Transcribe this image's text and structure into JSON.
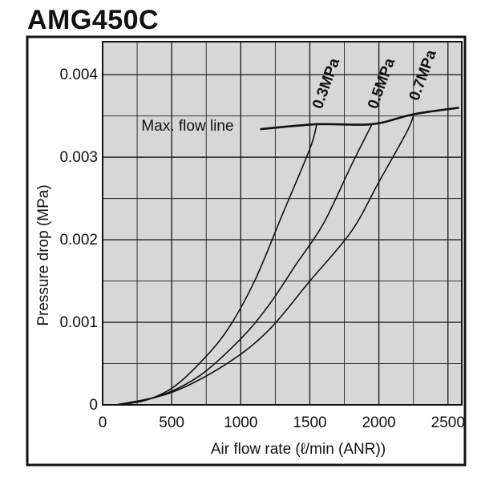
{
  "chart_data": {
    "type": "line",
    "title": "AMG450C",
    "xlabel": "Air flow rate (ℓ/min (ANR))",
    "ylabel": "Pressure drop (MPa)",
    "xlim": [
      0,
      2600
    ],
    "ylim": [
      0,
      0.0044
    ],
    "x_ticks": [
      0,
      500,
      1000,
      1500,
      2000,
      2500
    ],
    "x_tick_labels": [
      "0",
      "500",
      "1000",
      "1500",
      "2000",
      "2500"
    ],
    "y_ticks": [
      0,
      0.001,
      0.002,
      0.003,
      0.004
    ],
    "y_tick_labels": [
      "0",
      "0.001",
      "0.002",
      "0.003",
      "0.004"
    ],
    "grid": true,
    "series": [
      {
        "name": "0.3MPa",
        "x": [
          100,
          300,
          500,
          700,
          900,
          1100,
          1300,
          1500,
          1550
        ],
        "y": [
          0,
          5e-05,
          0.0002,
          0.0005,
          0.0009,
          0.0015,
          0.0023,
          0.0031,
          0.0034
        ]
      },
      {
        "name": "0.5MPa",
        "x": [
          100,
          400,
          700,
          1000,
          1200,
          1400,
          1600,
          1800,
          1950
        ],
        "y": [
          0,
          0.0001,
          0.00035,
          0.0008,
          0.0012,
          0.0017,
          0.0022,
          0.0029,
          0.0034
        ]
      },
      {
        "name": "0.7MPa",
        "x": [
          100,
          500,
          900,
          1200,
          1500,
          1800,
          2000,
          2200,
          2250
        ],
        "y": [
          0,
          0.00015,
          0.0005,
          0.0009,
          0.0015,
          0.0021,
          0.0027,
          0.0033,
          0.0035
        ]
      }
    ],
    "max_flow_line": {
      "label": "Max. flow line",
      "x": [
        1140,
        1550,
        1950,
        2250,
        2580
      ],
      "y": [
        0.00334,
        0.0034,
        0.0034,
        0.00352,
        0.0036
      ]
    }
  },
  "colors": {
    "line": "#111111",
    "grid": "#222222",
    "background": "#d7d7d7",
    "frame": "#111111"
  }
}
